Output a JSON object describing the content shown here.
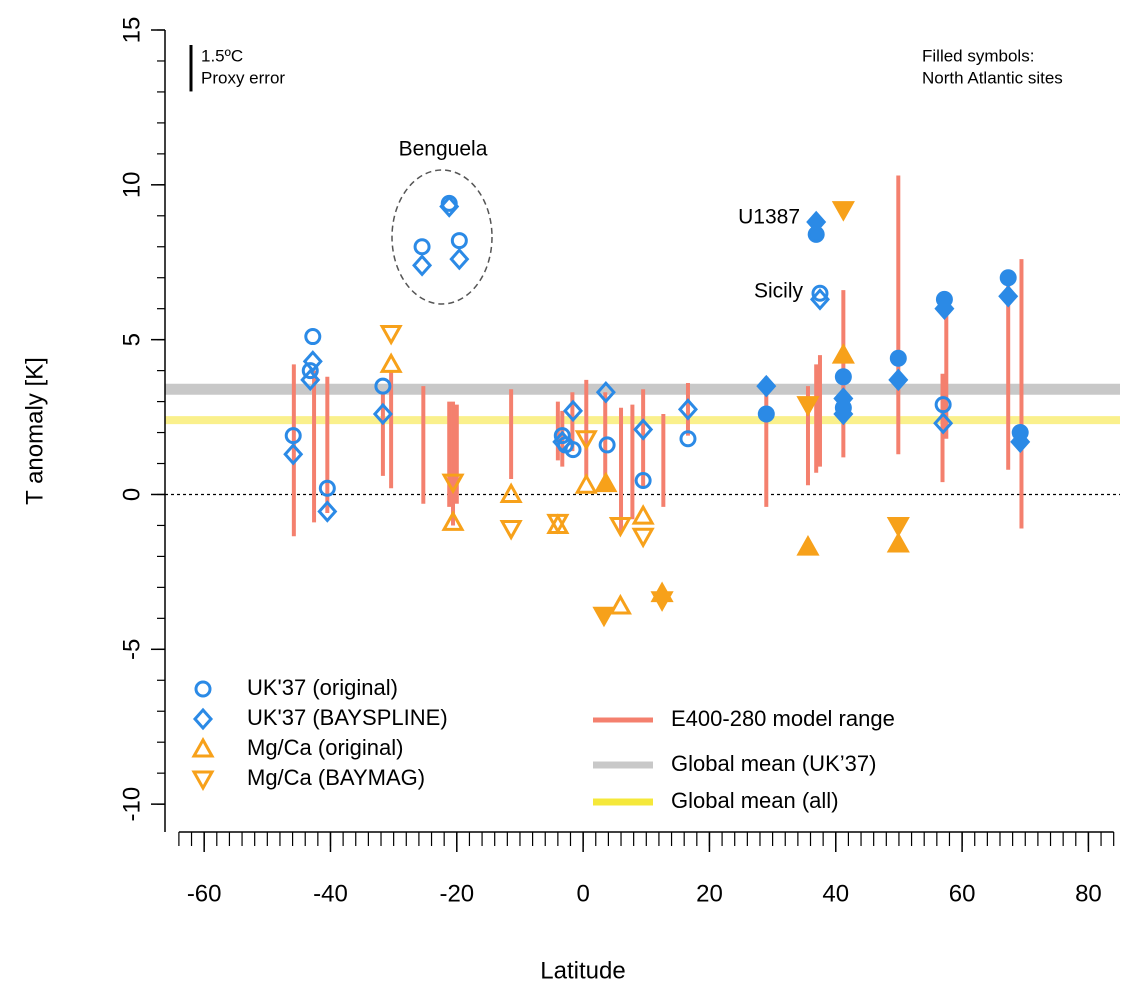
{
  "chart_data": {
    "type": "scatter",
    "x_label": "Latitude",
    "y_label": "T anomaly [K]",
    "xlim": [
      -66.2,
      85
    ],
    "ylim": [
      -10.9,
      15
    ],
    "xticks": [
      -60,
      -40,
      -20,
      0,
      20,
      40,
      60,
      80
    ],
    "yticks": [
      -10,
      -5,
      0,
      5,
      10,
      15
    ],
    "xminorticks": [
      -64,
      -62,
      -60,
      -58,
      -56,
      -54,
      -52,
      -50,
      -48,
      -46,
      -44,
      -42,
      -40,
      -38,
      -36,
      -34,
      -32,
      -30,
      -28,
      -26,
      -24,
      -22,
      -20,
      -18,
      -16,
      -14,
      -12,
      -10,
      -8,
      -6,
      -4,
      -2,
      0,
      2,
      4,
      6,
      8,
      10,
      12,
      14,
      16,
      18,
      20,
      22,
      24,
      26,
      28,
      30,
      32,
      34,
      36,
      38,
      40,
      42,
      44,
      46,
      48,
      50,
      52,
      54,
      56,
      58,
      60,
      62,
      64,
      66,
      68,
      70,
      72,
      74,
      76,
      78,
      80,
      82,
      84
    ],
    "yminorticks": [
      -10,
      -9,
      -8,
      -7,
      -6,
      -5,
      -4,
      -3,
      -2,
      -1,
      0,
      1,
      2,
      3,
      4,
      5,
      6,
      7,
      8,
      9,
      10,
      11,
      12,
      13,
      14,
      15
    ],
    "reference_line": 0,
    "note": [
      "Filled symbols:",
      "North Atlantic sites"
    ],
    "proxy_error": {
      "value": 1.5,
      "label": "1.5ºC",
      "text": "Proxy error"
    },
    "annotations": [
      "Benguela",
      "U1387",
      "Sicily"
    ],
    "global_means": [
      {
        "name": "Global mean (UK’37)",
        "value": 3.4,
        "color": "#c8c8c8"
      },
      {
        "name": "Global mean (all)",
        "value": 2.4,
        "color": "#faf08c"
      }
    ],
    "model_range": {
      "name": "E400-280 model range",
      "color": "#f4806e",
      "x": [
        -45.8,
        -42.6,
        -40.5,
        -31.7,
        -30.4,
        -25.3,
        -21.2,
        -20.6,
        -20.0,
        -11.4,
        -4.0,
        -3.3,
        -1.7,
        0.5,
        3.5,
        6.0,
        7.8,
        9.5,
        12.7,
        16.6,
        29.0,
        35.6,
        36.9,
        37.5,
        41.2,
        49.9,
        56.9,
        57.5,
        67.3,
        69.4
      ],
      "low": [
        -1.35,
        -0.9,
        -0.6,
        0.6,
        0.2,
        -0.3,
        -0.4,
        -1.0,
        -0.3,
        0.5,
        1.1,
        0.9,
        1.4,
        0.5,
        0.2,
        -1.2,
        -0.8,
        0.2,
        -0.4,
        1.9,
        -0.4,
        0.3,
        0.7,
        0.9,
        1.2,
        1.3,
        0.4,
        1.8,
        0.8,
        -1.1
      ],
      "high": [
        4.2,
        4.0,
        3.8,
        3.3,
        4.0,
        3.5,
        3.0,
        3.0,
        2.9,
        3.4,
        3.0,
        2.7,
        3.3,
        3.7,
        3.3,
        2.8,
        2.9,
        3.4,
        2.6,
        3.6,
        3.8,
        3.5,
        4.2,
        4.5,
        6.6,
        10.3,
        3.9,
        6.3,
        6.8,
        7.6
      ]
    },
    "series": [
      {
        "name": "UK'37 (original)",
        "marker": "circle",
        "color": "#2b8ae6",
        "x": [
          -45.9,
          -42.8,
          -43.2,
          -40.5,
          -31.7,
          -25.5,
          -21.2,
          -19.6,
          -3.3,
          -2.8,
          -1.6,
          3.8,
          9.5,
          16.6,
          29.0,
          36.9,
          37.5,
          41.2,
          41.2,
          49.9,
          57.2,
          57.0,
          67.3,
          69.2
        ],
        "values": [
          1.9,
          5.1,
          4.0,
          0.2,
          3.5,
          8.0,
          9.4,
          8.2,
          1.9,
          1.6,
          1.45,
          1.6,
          0.45,
          1.8,
          2.6,
          8.4,
          6.5,
          3.8,
          2.8,
          4.4,
          6.3,
          2.9,
          7.0,
          2.0
        ],
        "filled": [
          false,
          false,
          false,
          false,
          false,
          false,
          false,
          false,
          false,
          false,
          false,
          false,
          false,
          false,
          true,
          true,
          false,
          true,
          true,
          true,
          true,
          false,
          true,
          true
        ]
      },
      {
        "name": "UK'37 (BAYSPLINE)",
        "marker": "diamond",
        "color": "#2b8ae6",
        "x": [
          -45.9,
          -42.8,
          -43.2,
          -40.5,
          -31.7,
          -25.5,
          -21.2,
          -19.6,
          -3.3,
          -1.6,
          3.6,
          9.5,
          16.6,
          29.0,
          36.9,
          37.5,
          41.2,
          41.2,
          49.9,
          57.2,
          57.0,
          67.3,
          69.2
        ],
        "values": [
          1.3,
          4.3,
          3.7,
          -0.55,
          2.6,
          7.4,
          9.3,
          7.6,
          1.7,
          2.7,
          3.3,
          2.1,
          2.75,
          3.5,
          8.8,
          6.3,
          3.1,
          2.6,
          3.7,
          6.0,
          2.3,
          6.4,
          1.7
        ],
        "filled": [
          false,
          false,
          false,
          false,
          false,
          false,
          false,
          false,
          false,
          false,
          false,
          false,
          false,
          true,
          true,
          false,
          true,
          true,
          true,
          true,
          false,
          true,
          true
        ]
      },
      {
        "name": "Mg/Ca (original)",
        "marker": "up",
        "color": "#f7a11a",
        "x": [
          -30.4,
          -20.6,
          -11.4,
          -4.0,
          0.5,
          3.6,
          5.9,
          9.5,
          12.5,
          35.6,
          41.2,
          49.9
        ],
        "values": [
          4.2,
          -0.9,
          0.0,
          -1.0,
          0.3,
          0.35,
          -3.6,
          -0.7,
          -3.2,
          -1.7,
          4.5,
          -1.6
        ],
        "filled": [
          false,
          false,
          false,
          false,
          false,
          true,
          false,
          false,
          true,
          true,
          true,
          true
        ]
      },
      {
        "name": "Mg/Ca (BAYMAG)",
        "marker": "down",
        "color": "#f7a11a",
        "x": [
          -30.4,
          -20.6,
          -11.4,
          -4.0,
          0.5,
          3.3,
          5.9,
          9.5,
          12.5,
          35.6,
          41.2,
          49.9
        ],
        "values": [
          5.2,
          0.4,
          -1.1,
          -0.9,
          1.8,
          -3.9,
          -1.0,
          -1.35,
          -3.4,
          2.9,
          9.2,
          -1.0
        ],
        "filled": [
          false,
          false,
          false,
          false,
          false,
          true,
          false,
          false,
          true,
          true,
          true,
          true
        ]
      }
    ]
  }
}
